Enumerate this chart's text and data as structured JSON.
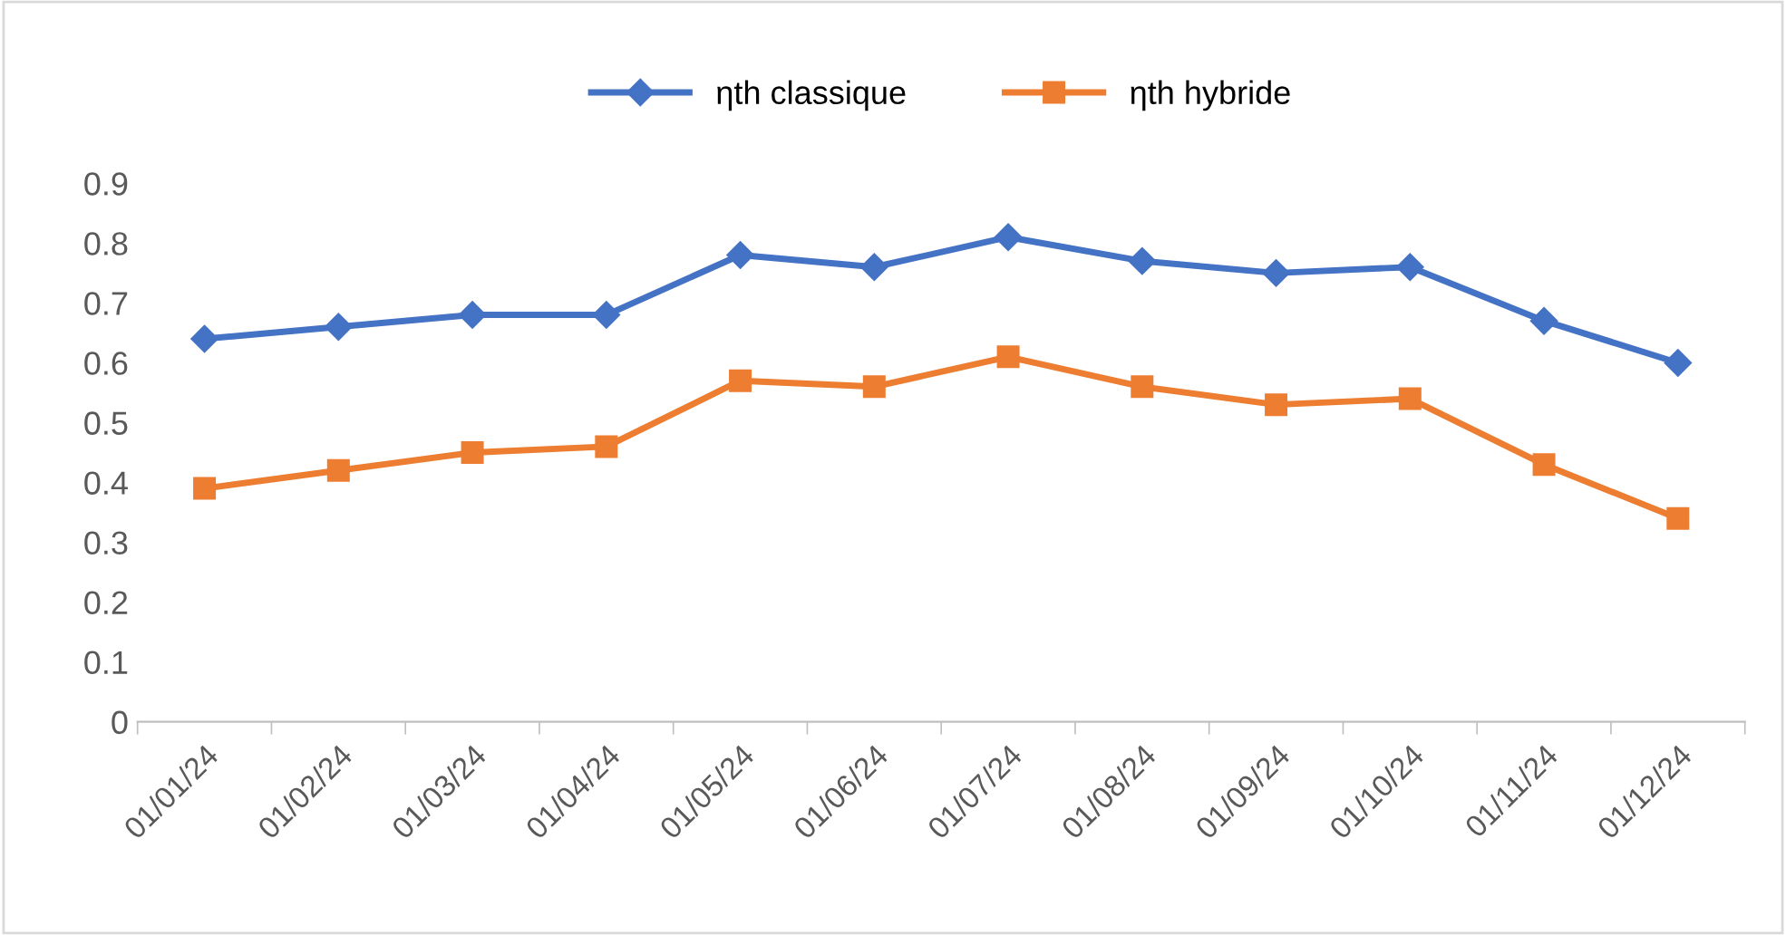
{
  "chart_data": {
    "type": "line",
    "categories": [
      "01/01/24",
      "01/02/24",
      "01/03/24",
      "01/04/24",
      "01/05/24",
      "01/06/24",
      "01/07/24",
      "01/08/24",
      "01/09/24",
      "01/10/24",
      "01/11/24",
      "01/12/24"
    ],
    "series": [
      {
        "name": "ηth classique",
        "color": "#4472c4",
        "marker": "diamond",
        "values": [
          0.64,
          0.66,
          0.68,
          0.68,
          0.78,
          0.76,
          0.81,
          0.77,
          0.75,
          0.76,
          0.67,
          0.6
        ]
      },
      {
        "name": "ηth hybride",
        "color": "#ed7d31",
        "marker": "square",
        "values": [
          0.39,
          0.42,
          0.45,
          0.46,
          0.57,
          0.56,
          0.61,
          0.56,
          0.53,
          0.54,
          0.43,
          0.34
        ]
      }
    ],
    "ylim": [
      0,
      0.9
    ],
    "yticks": [
      0,
      0.1,
      0.2,
      0.3,
      0.4,
      0.5,
      0.6,
      0.7,
      0.8,
      0.9
    ],
    "grid": false,
    "legend": "top"
  }
}
